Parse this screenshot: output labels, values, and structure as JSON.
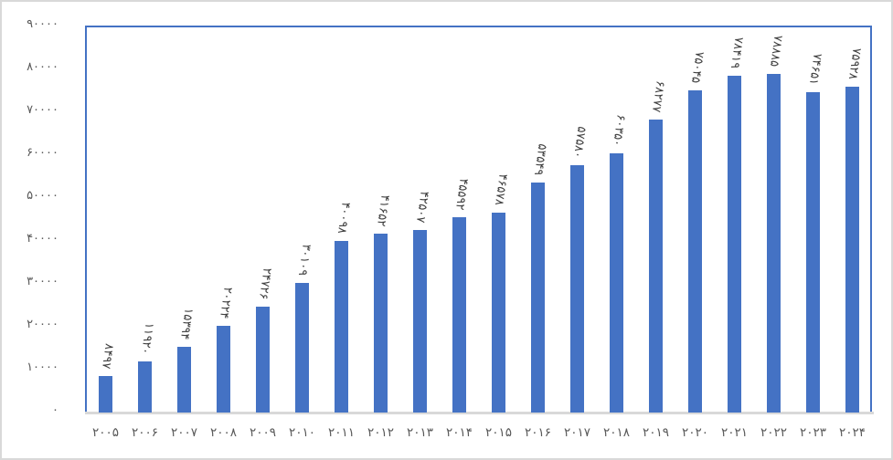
{
  "chart_data": {
    "type": "bar",
    "title": "",
    "xlabel": "",
    "ylabel": "",
    "numeral_system": "persian-eastern-arabic",
    "categories": [
      2005,
      2006,
      2007,
      2008,
      2009,
      2010,
      2011,
      2012,
      2013,
      2014,
      2015,
      2016,
      2017,
      2018,
      2019,
      2020,
      2021,
      2022,
      2023,
      2024
    ],
    "categories_display": [
      "۲۰۰۵",
      "۲۰۰۶",
      "۲۰۰۷",
      "۲۰۰۸",
      "۲۰۰۹",
      "۲۰۱۰",
      "۲۰۱۱",
      "۲۰۱۲",
      "۲۰۱۳",
      "۲۰۱۴",
      "۲۰۱۵",
      "۲۰۱۶",
      "۲۰۱۷",
      "۲۰۱۸",
      "۲۰۱۹",
      "۲۰۲۰",
      "۲۰۲۱",
      "۲۰۲۲",
      "۲۰۲۳",
      "۲۰۲۴"
    ],
    "values": [
      8497,
      11920,
      15394,
      20224,
      24726,
      30109,
      40098,
      41652,
      42507,
      45592,
      46578,
      53549,
      57580,
      60350,
      68277,
      75045,
      78419,
      78885,
      74651,
      75928
    ],
    "value_labels_display": [
      "۸۴۹۷",
      "۱۱۹۲۰",
      "۱۵۳۹۴",
      "۲۰۲۲۴",
      "۲۴۷۲۶",
      "۳۰۱۰۹",
      "۴۰۰۹۸",
      "۴۱۶۵۲",
      "۴۲۵۰۷",
      "۴۵۵۹۲",
      "۴۶۵۷۸",
      "۵۳۵۴۹",
      "۵۷۵۸۰",
      "۶۰۳۵۰",
      "۶۸۲۷۷",
      "۷۵۰۴۵",
      "۷۸۴۱۹",
      "۷۸۸۸۵",
      "۷۴۶۵۱",
      "۷۵۹۲۸"
    ],
    "y_ticks": [
      90000,
      80000,
      70000,
      60000,
      50000,
      40000,
      30000,
      20000,
      10000,
      0
    ],
    "y_tick_labels_display": [
      "۹۰۰۰۰",
      "۸۰۰۰۰",
      "۷۰۰۰۰",
      "۶۰۰۰۰",
      "۵۰۰۰۰",
      "۴۰۰۰۰",
      "۳۰۰۰۰",
      "۲۰۰۰۰",
      "۱۰۰۰۰",
      "۰"
    ],
    "ylim": [
      0,
      90000
    ],
    "grid": false,
    "legend": false,
    "value_labels_rotated": true,
    "colors": {
      "bar": "#4472C4",
      "plot_border": "#4472C4",
      "axis_line": "#D9D9D9",
      "tick_label_text": "#595959",
      "value_label_text": "#404040",
      "outer_border": "#D9D9D9",
      "background": "#ffffff"
    }
  }
}
